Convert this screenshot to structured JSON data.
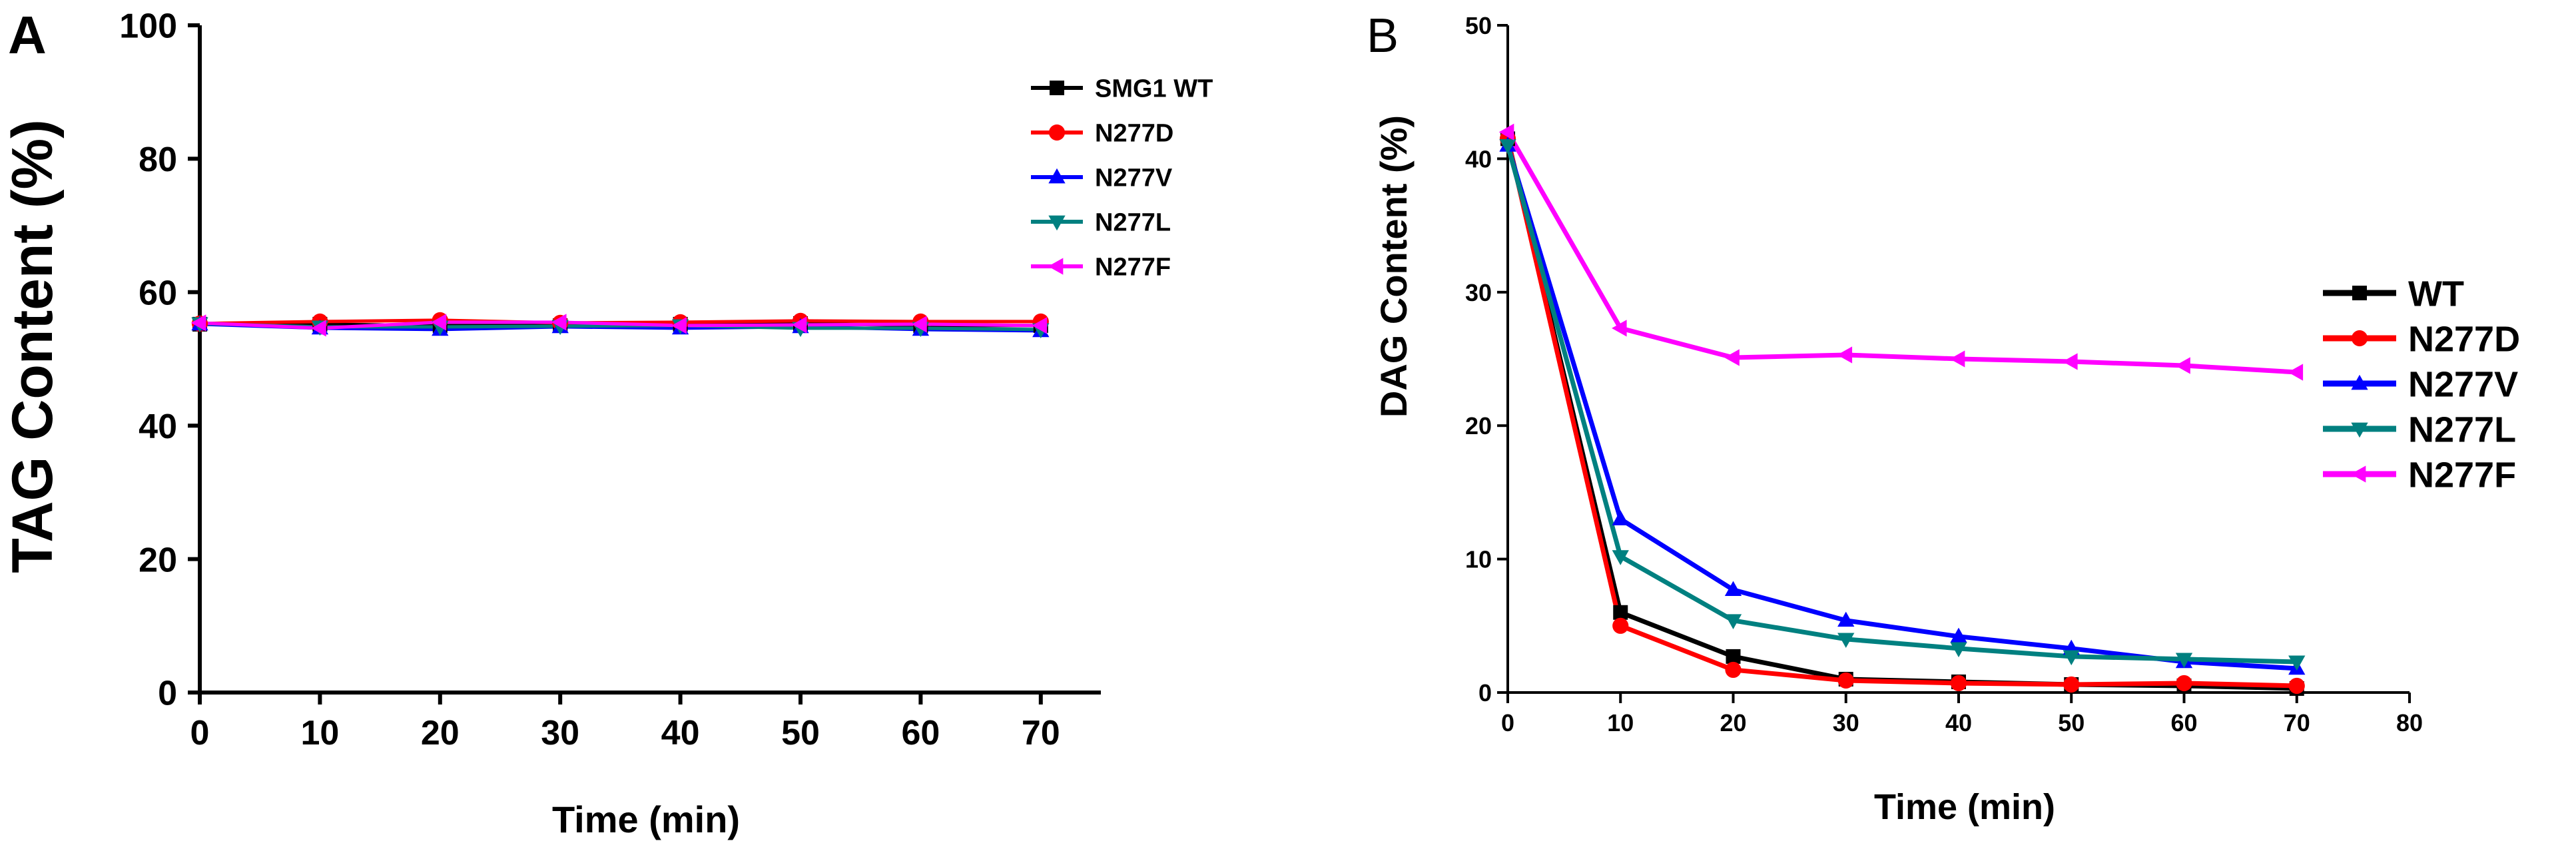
{
  "chart_data": [
    {
      "panel": "A",
      "type": "line",
      "title": "",
      "xlabel": "Time (min)",
      "ylabel": "TAG Content (%)",
      "xlim": [
        0,
        75
      ],
      "ylim": [
        0,
        100
      ],
      "xticks": [
        "0",
        "10",
        "20",
        "30",
        "40",
        "50",
        "60",
        "70"
      ],
      "yticks": [
        "0",
        "20",
        "40",
        "60",
        "80",
        "100"
      ],
      "legend_position": "top-right",
      "x": [
        0,
        10,
        20,
        30,
        40,
        50,
        60,
        70
      ],
      "series": [
        {
          "name": "SMG1 WT",
          "color": "#000000",
          "marker": "square",
          "values": [
            55.2,
            55.2,
            55.0,
            55.0,
            55.2,
            55.3,
            55.0,
            55.0
          ]
        },
        {
          "name": "N277D",
          "color": "#ff0000",
          "marker": "circle",
          "values": [
            55.3,
            55.6,
            55.8,
            55.4,
            55.5,
            55.7,
            55.6,
            55.6
          ]
        },
        {
          "name": "N277V",
          "color": "#0000ff",
          "marker": "triangle-up",
          "values": [
            55.2,
            54.6,
            54.4,
            54.8,
            54.6,
            54.8,
            54.4,
            54.2
          ]
        },
        {
          "name": "N277L",
          "color": "#008080",
          "marker": "triangle-down",
          "values": [
            55.3,
            54.8,
            54.8,
            54.9,
            55.0,
            54.6,
            54.6,
            54.4
          ]
        },
        {
          "name": "N277F",
          "color": "#ff00ff",
          "marker": "triangle-left",
          "values": [
            55.4,
            54.6,
            55.5,
            55.5,
            55.0,
            55.1,
            55.2,
            55.0
          ]
        }
      ]
    },
    {
      "panel": "B",
      "type": "line",
      "title": "",
      "xlabel": "Time (min)",
      "ylabel": "DAG Content (%)",
      "xlim": [
        0,
        80
      ],
      "ylim": [
        0,
        50
      ],
      "xticks": [
        "0",
        "10",
        "20",
        "30",
        "40",
        "50",
        "60",
        "70",
        "80"
      ],
      "yticks": [
        "0",
        "10",
        "20",
        "30",
        "40",
        "50"
      ],
      "legend_position": "right",
      "x": [
        0,
        10,
        20,
        30,
        40,
        50,
        60,
        70
      ],
      "series": [
        {
          "name": "WT",
          "color": "#000000",
          "marker": "square",
          "values": [
            41.5,
            6.0,
            2.7,
            1.0,
            0.8,
            0.6,
            0.5,
            0.3
          ]
        },
        {
          "name": "N277D",
          "color": "#ff0000",
          "marker": "circle",
          "values": [
            41.5,
            5.0,
            1.7,
            0.9,
            0.7,
            0.6,
            0.7,
            0.5
          ]
        },
        {
          "name": "N277V",
          "color": "#0000ff",
          "marker": "triangle-up",
          "values": [
            41.0,
            13.0,
            7.7,
            5.4,
            4.2,
            3.3,
            2.3,
            1.8
          ]
        },
        {
          "name": "N277L",
          "color": "#008080",
          "marker": "triangle-down",
          "values": [
            41.0,
            10.2,
            5.4,
            4.0,
            3.3,
            2.7,
            2.5,
            2.3
          ]
        },
        {
          "name": "N277F",
          "color": "#ff00ff",
          "marker": "triangle-left",
          "values": [
            42.0,
            27.3,
            25.1,
            25.3,
            25.0,
            24.8,
            24.5,
            24.0
          ]
        }
      ]
    }
  ]
}
